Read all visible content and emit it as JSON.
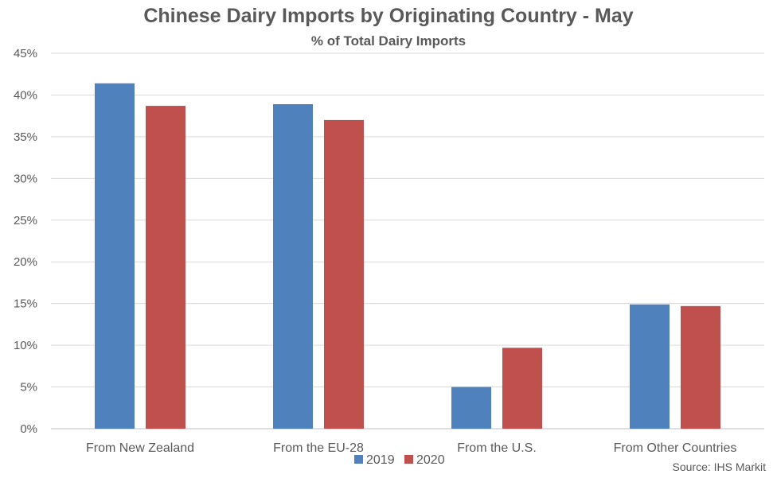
{
  "chart_data": {
    "type": "bar",
    "title": "Chinese Dairy Imports by Originating Country - May",
    "subtitle": "% of Total Dairy Imports",
    "categories": [
      "From New Zealand",
      "From the EU-28",
      "From the U.S.",
      "From Other Countries"
    ],
    "series": [
      {
        "name": "2019",
        "color": "#4F81BD",
        "values": [
          41.4,
          38.9,
          5.0,
          14.9
        ]
      },
      {
        "name": "2020",
        "color": "#C0504D",
        "values": [
          38.7,
          37.0,
          9.7,
          14.7
        ]
      }
    ],
    "ylim": [
      0,
      45
    ],
    "y_ticks": [
      "0%",
      "5%",
      "10%",
      "15%",
      "20%",
      "25%",
      "30%",
      "35%",
      "40%",
      "45%"
    ],
    "xlabel": "",
    "ylabel": "",
    "grid": true,
    "legend_position": "bottom-center",
    "source": "Source: IHS Markit"
  }
}
